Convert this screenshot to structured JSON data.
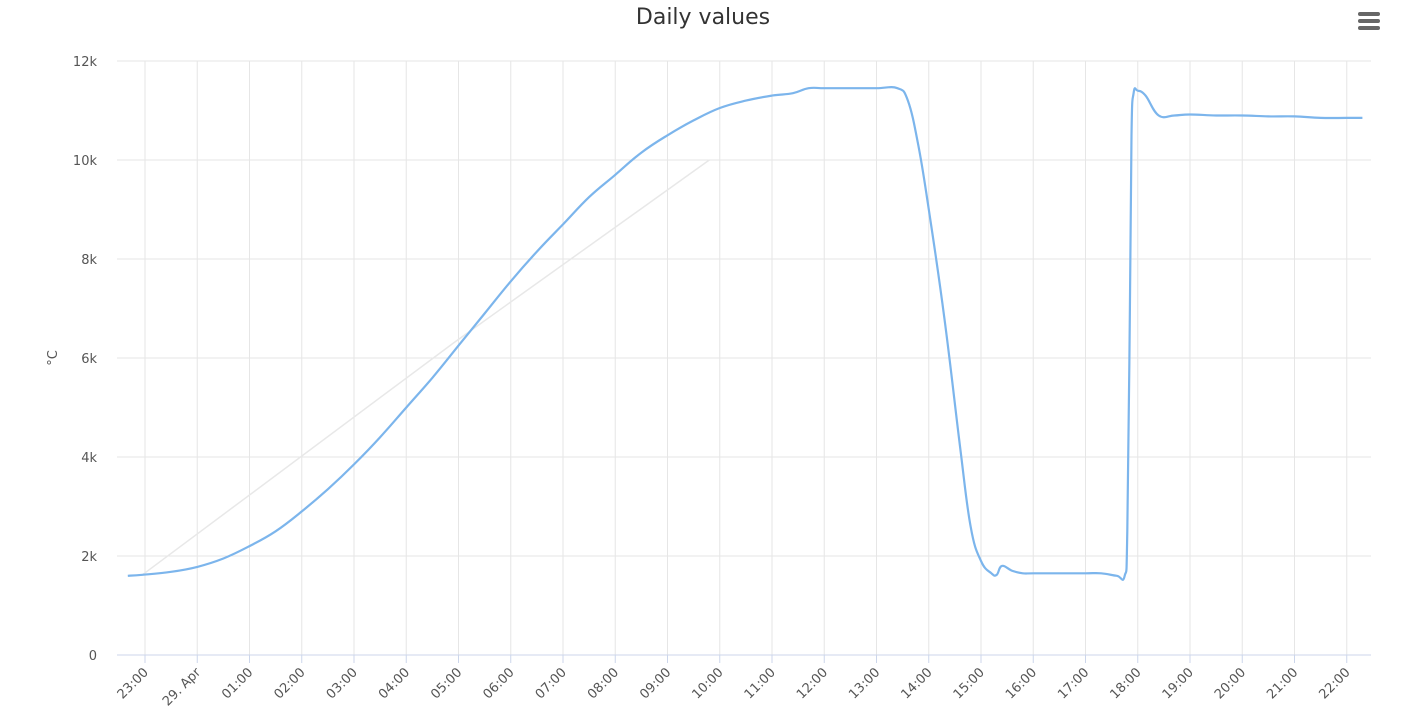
{
  "menu_icon": "hamburger-menu-icon",
  "colors": {
    "series": "#7cb5ec",
    "grid": "#e6e6e6",
    "axis": "#ccd6eb",
    "ghost": "#e8e8e8"
  },
  "chart_data": {
    "type": "line",
    "title": "Daily values",
    "ylabel": "°C",
    "xlabel": "",
    "ylim": [
      0,
      12000
    ],
    "yticks": [
      0,
      2000,
      4000,
      6000,
      8000,
      10000,
      12000
    ],
    "ytick_labels": [
      "0",
      "2k",
      "4k",
      "6k",
      "8k",
      "10k",
      "12k"
    ],
    "xlim": [
      -1.33,
      23.2
    ],
    "xticks": [
      -1,
      0,
      1,
      2,
      3,
      4,
      5,
      6,
      7,
      8,
      9,
      10,
      11,
      12,
      13,
      14,
      15,
      16,
      17,
      18,
      19,
      20,
      21,
      22
    ],
    "xtick_labels": [
      "23:00",
      "29. Apr",
      "01:00",
      "02:00",
      "03:00",
      "04:00",
      "05:00",
      "06:00",
      "07:00",
      "08:00",
      "09:00",
      "10:00",
      "11:00",
      "12:00",
      "13:00",
      "14:00",
      "15:00",
      "16:00",
      "17:00",
      "18:00",
      "19:00",
      "20:00",
      "21:00",
      "22:00"
    ],
    "x_unit": "hours since 29. Apr 00:00",
    "grid": true,
    "legend": "none",
    "series": [
      {
        "values": [
          [
            -1.33,
            1600
          ],
          [
            -1.05,
            1620
          ],
          [
            -0.5,
            1680
          ],
          [
            0,
            1780
          ],
          [
            0.5,
            1950
          ],
          [
            1,
            2200
          ],
          [
            1.5,
            2500
          ],
          [
            2,
            2900
          ],
          [
            2.5,
            3350
          ],
          [
            3,
            3850
          ],
          [
            3.5,
            4400
          ],
          [
            4,
            5000
          ],
          [
            4.5,
            5600
          ],
          [
            5,
            6250
          ],
          [
            5.5,
            6900
          ],
          [
            6,
            7550
          ],
          [
            6.5,
            8150
          ],
          [
            7,
            8700
          ],
          [
            7.5,
            9250
          ],
          [
            8,
            9700
          ],
          [
            8.5,
            10150
          ],
          [
            9,
            10500
          ],
          [
            9.5,
            10800
          ],
          [
            10,
            11050
          ],
          [
            10.5,
            11200
          ],
          [
            11,
            11300
          ],
          [
            11.4,
            11350
          ],
          [
            11.7,
            11450
          ],
          [
            12,
            11450
          ],
          [
            12.5,
            11450
          ],
          [
            13,
            11450
          ],
          [
            13.4,
            11450
          ],
          [
            13.6,
            11200
          ],
          [
            13.8,
            10300
          ],
          [
            14,
            9000
          ],
          [
            14.3,
            6800
          ],
          [
            14.6,
            4200
          ],
          [
            14.8,
            2600
          ],
          [
            15,
            1900
          ],
          [
            15.2,
            1650
          ],
          [
            15.3,
            1620
          ],
          [
            15.4,
            1800
          ],
          [
            15.6,
            1700
          ],
          [
            15.8,
            1650
          ],
          [
            16,
            1650
          ],
          [
            16.5,
            1650
          ],
          [
            17,
            1650
          ],
          [
            17.3,
            1650
          ],
          [
            17.6,
            1600
          ],
          [
            17.75,
            1600
          ],
          [
            17.8,
            2500
          ],
          [
            17.85,
            7000
          ],
          [
            17.88,
            10500
          ],
          [
            17.92,
            11350
          ],
          [
            18,
            11400
          ],
          [
            18.15,
            11300
          ],
          [
            18.4,
            10900
          ],
          [
            18.7,
            10900
          ],
          [
            19,
            10920
          ],
          [
            19.5,
            10900
          ],
          [
            20,
            10900
          ],
          [
            20.5,
            10880
          ],
          [
            21,
            10880
          ],
          [
            21.5,
            10850
          ],
          [
            22,
            10850
          ],
          [
            22.3,
            10850
          ]
        ]
      }
    ],
    "ghost_series": {
      "values": [
        [
          -1.05,
          1620
        ],
        [
          4.9,
          6300
        ],
        [
          9.8,
          10000
        ]
      ]
    }
  }
}
